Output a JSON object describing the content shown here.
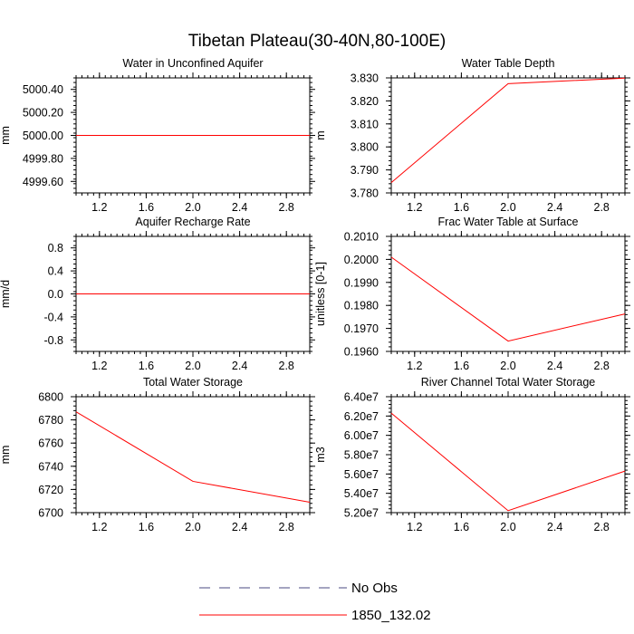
{
  "main_title": "Tibetan Plateau(30-40N,80-100E)",
  "legend": [
    {
      "label": "No Obs",
      "color": "#4a4a80",
      "dash": true
    },
    {
      "label": "1850_132.02",
      "color": "#ff0000",
      "dash": false
    }
  ],
  "chart_data": [
    {
      "type": "line",
      "title": "Water in Unconfined Aquifer",
      "ylabel": "mm",
      "xlim": [
        1,
        3
      ],
      "ylim": [
        4999.5,
        5000.5
      ],
      "xticks": [
        1.2,
        1.6,
        2.0,
        2.4,
        2.8
      ],
      "xtick_labels": [
        "1.2",
        "1.6",
        "2.0",
        "2.4",
        "2.8"
      ],
      "yticks": [
        4999.6,
        4999.8,
        5000.0,
        5000.2,
        5000.4
      ],
      "ytick_labels": [
        "4999.60",
        "4999.80",
        "5000.00",
        "5000.20",
        "5000.40"
      ],
      "series": [
        {
          "name": "1850_132.02",
          "x": [
            1,
            2,
            3
          ],
          "y": [
            5000.0,
            5000.0,
            5000.0
          ]
        }
      ]
    },
    {
      "type": "line",
      "title": "Water Table Depth",
      "ylabel": "m",
      "xlim": [
        1,
        3
      ],
      "ylim": [
        3.78,
        3.83
      ],
      "xticks": [
        1.2,
        1.6,
        2.0,
        2.4,
        2.8
      ],
      "xtick_labels": [
        "1.2",
        "1.6",
        "2.0",
        "2.4",
        "2.8"
      ],
      "yticks": [
        3.78,
        3.79,
        3.8,
        3.81,
        3.82,
        3.83
      ],
      "ytick_labels": [
        "3.780",
        "3.790",
        "3.800",
        "3.810",
        "3.820",
        "3.830"
      ],
      "series": [
        {
          "name": "1850_132.02",
          "x": [
            1,
            2,
            3
          ],
          "y": [
            3.7845,
            3.8275,
            3.8299
          ]
        }
      ]
    },
    {
      "type": "line",
      "title": "Aquifer Recharge Rate",
      "ylabel": "mm/d",
      "xlim": [
        1,
        3
      ],
      "ylim": [
        -1,
        1
      ],
      "xticks": [
        1.2,
        1.6,
        2.0,
        2.4,
        2.8
      ],
      "xtick_labels": [
        "1.2",
        "1.6",
        "2.0",
        "2.4",
        "2.8"
      ],
      "yticks": [
        -0.8,
        -0.4,
        0.0,
        0.4,
        0.8
      ],
      "ytick_labels": [
        "-0.8",
        "-0.4",
        "0.0",
        "0.4",
        "0.8"
      ],
      "series": [
        {
          "name": "1850_132.02",
          "x": [
            1,
            2,
            3
          ],
          "y": [
            0,
            0,
            0
          ]
        }
      ]
    },
    {
      "type": "line",
      "title": "Frac Water Table at Surface",
      "ylabel": "unitless [0-1]",
      "xlim": [
        1,
        3
      ],
      "ylim": [
        0.196,
        0.201
      ],
      "xticks": [
        1.2,
        1.6,
        2.0,
        2.4,
        2.8
      ],
      "xtick_labels": [
        "1.2",
        "1.6",
        "2.0",
        "2.4",
        "2.8"
      ],
      "yticks": [
        0.196,
        0.197,
        0.198,
        0.199,
        0.2,
        0.201
      ],
      "ytick_labels": [
        "0.1960",
        "0.1970",
        "0.1980",
        "0.1990",
        "0.2000",
        "0.2010"
      ],
      "series": [
        {
          "name": "1850_132.02",
          "x": [
            1,
            2,
            3
          ],
          "y": [
            0.2001,
            0.19645,
            0.19763
          ]
        }
      ]
    },
    {
      "type": "line",
      "title": "Total Water Storage",
      "ylabel": "mm",
      "xlim": [
        1,
        3
      ],
      "ylim": [
        6700,
        6800
      ],
      "xticks": [
        1.2,
        1.6,
        2.0,
        2.4,
        2.8
      ],
      "xtick_labels": [
        "1.2",
        "1.6",
        "2.0",
        "2.4",
        "2.8"
      ],
      "yticks": [
        6700,
        6720,
        6740,
        6760,
        6780,
        6800
      ],
      "ytick_labels": [
        "6700",
        "6720",
        "6740",
        "6760",
        "6780",
        "6800"
      ],
      "series": [
        {
          "name": "1850_132.02",
          "x": [
            1,
            2,
            3
          ],
          "y": [
            6787,
            6727,
            6709
          ]
        }
      ]
    },
    {
      "type": "line",
      "title": "River Channel Total Water Storage",
      "ylabel": "m3",
      "xlim": [
        1,
        3
      ],
      "ylim": [
        52000000,
        64000000
      ],
      "xticks": [
        1.2,
        1.6,
        2.0,
        2.4,
        2.8
      ],
      "xtick_labels": [
        "1.2",
        "1.6",
        "2.0",
        "2.4",
        "2.8"
      ],
      "yticks": [
        52000000,
        54000000,
        56000000,
        58000000,
        60000000,
        62000000,
        64000000
      ],
      "ytick_labels": [
        "5.20e7",
        "5.40e7",
        "5.60e7",
        "5.80e7",
        "6.00e7",
        "6.20e7",
        "6.40e7"
      ],
      "series": [
        {
          "name": "1850_132.02",
          "x": [
            1,
            2,
            3
          ],
          "y": [
            62300000,
            52200000,
            56300000
          ]
        }
      ]
    }
  ]
}
